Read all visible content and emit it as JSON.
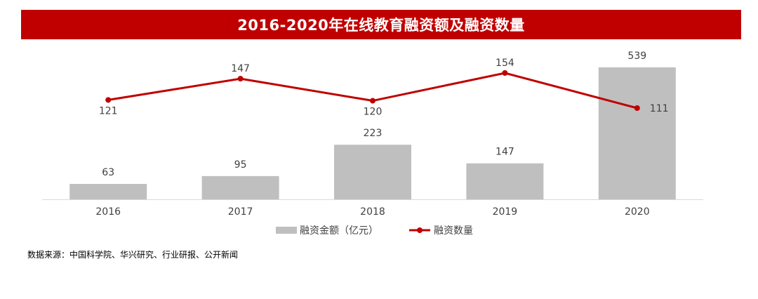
{
  "title": "2016-2020年在线教育融资额及融资数量",
  "source_note": "数据来源：中国科学院、华兴研究、行业研报、公开新闻",
  "colors": {
    "banner": "#c00000",
    "bar": "#bfbfbf",
    "line": "#c00000",
    "axis": "#d9d9d9",
    "text": "#404040"
  },
  "chart_data": {
    "type": "bar",
    "categories": [
      "2016",
      "2017",
      "2018",
      "2019",
      "2020"
    ],
    "series": [
      {
        "name": "融资金额（亿元）",
        "type": "bar",
        "values": [
          63,
          95,
          223,
          147,
          539
        ]
      },
      {
        "name": "融资数量",
        "type": "line",
        "values": [
          121,
          147,
          120,
          154,
          111
        ]
      }
    ],
    "legend_position": "bottom",
    "grid": false
  }
}
